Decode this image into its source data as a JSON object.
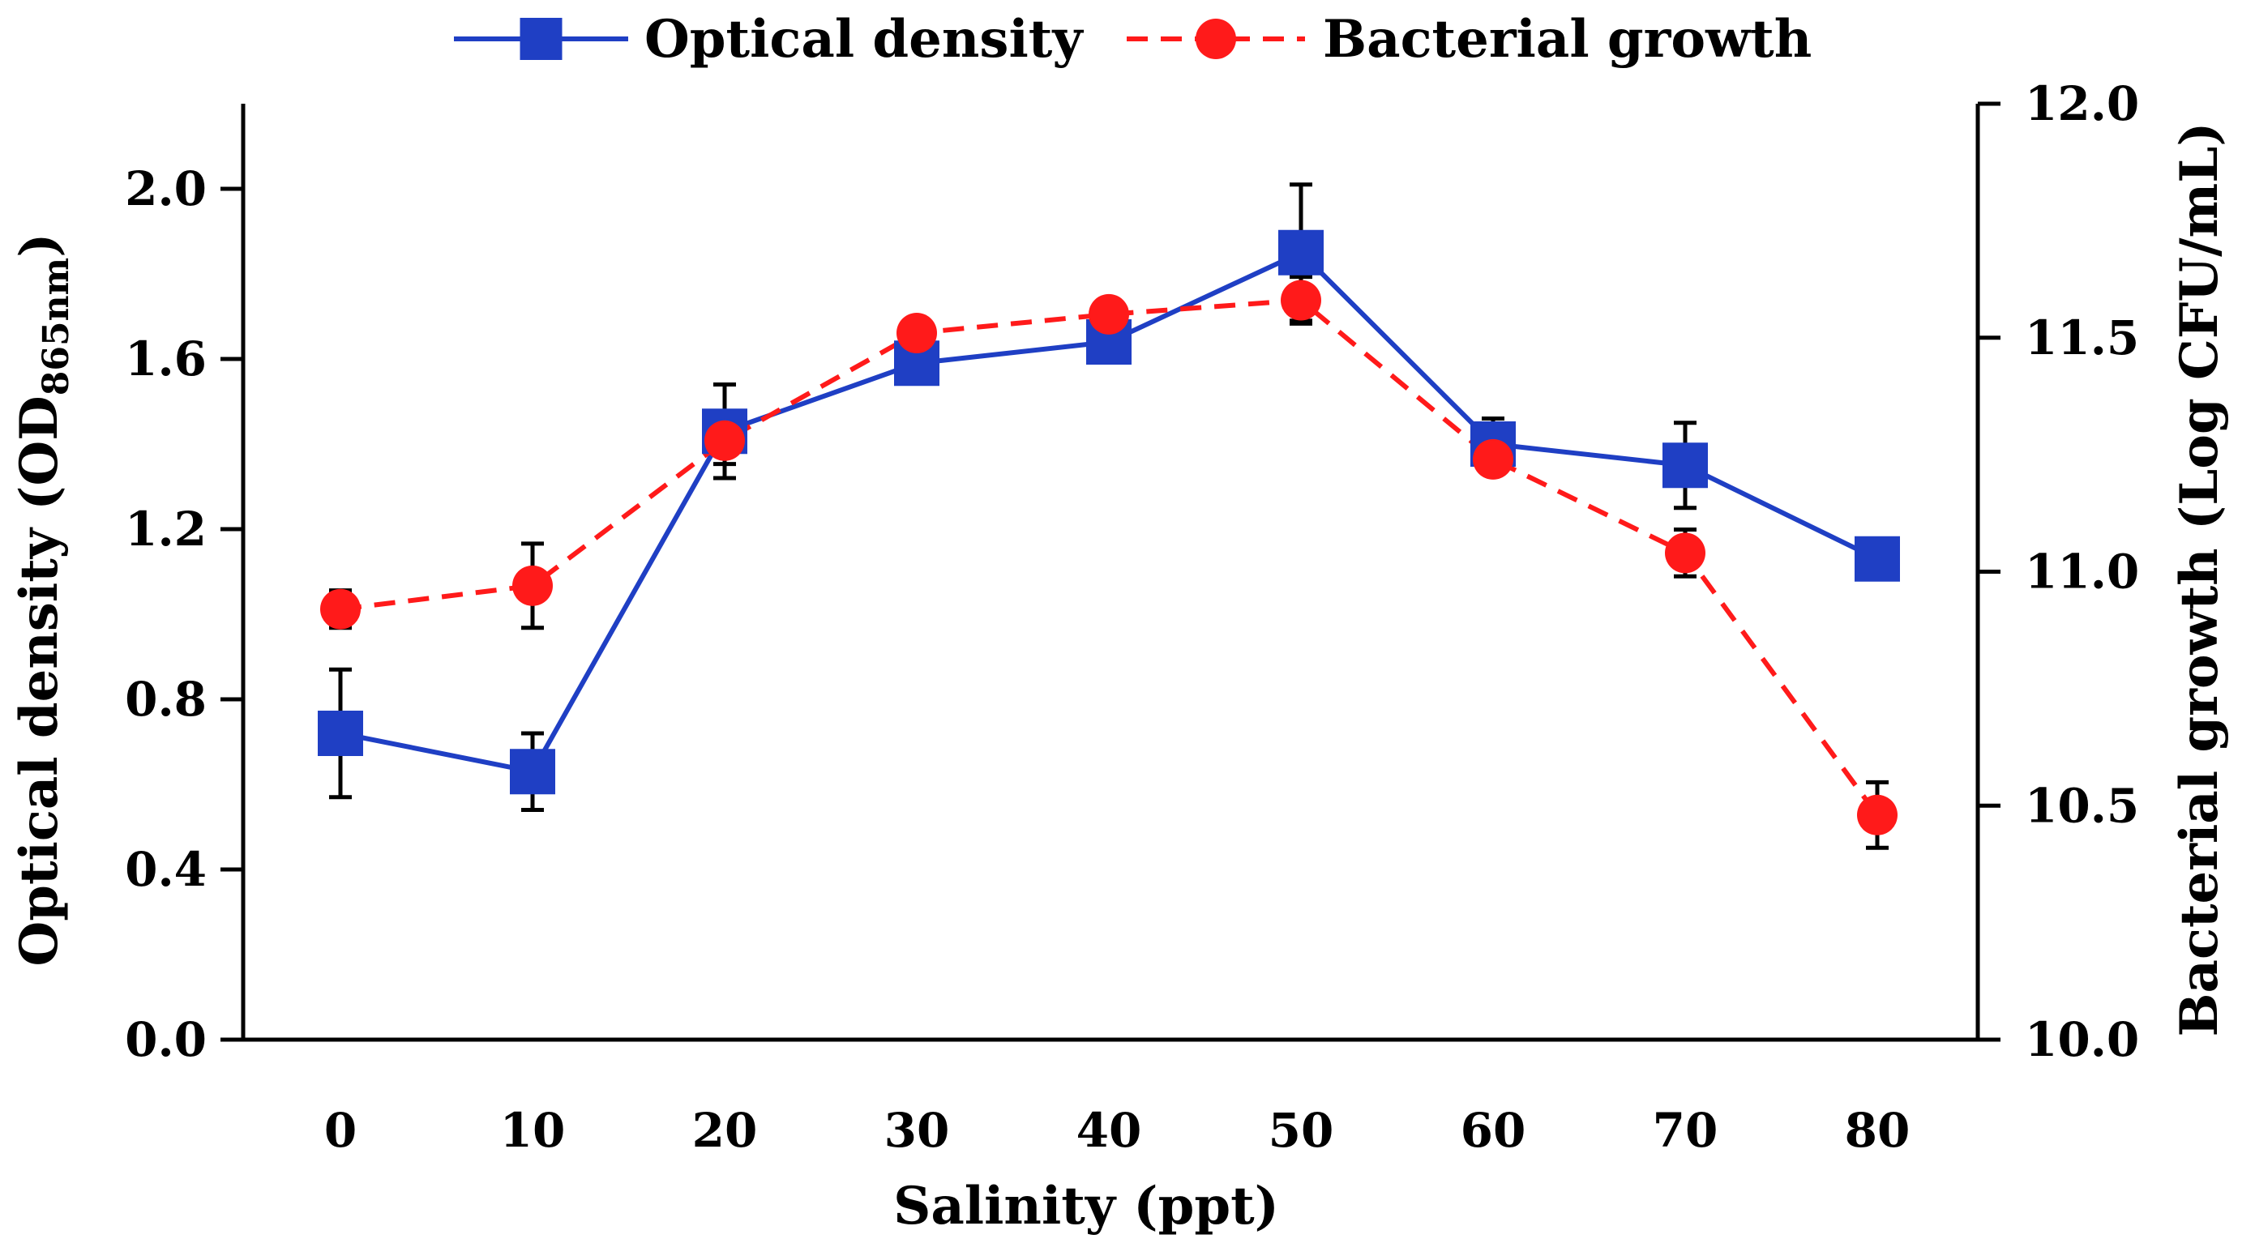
{
  "chart_data": {
    "type": "line",
    "title": "",
    "xlabel": "Salinity (ppt)",
    "ylabel_left": {
      "prefix": "Optical density (OD",
      "subscript": "865nm",
      "suffix": ")"
    },
    "ylabel_right": "Bacterial growth (Log CFU/mL)",
    "x": [
      0,
      10,
      20,
      30,
      40,
      50,
      60,
      70,
      80
    ],
    "x_tick_labels": [
      "0",
      "10",
      "20",
      "30",
      "40",
      "50",
      "60",
      "70",
      "80"
    ],
    "ylim_left": [
      0,
      2.2
    ],
    "y_left_ticks": [
      0.0,
      0.4,
      0.8,
      1.2,
      1.6,
      2.0
    ],
    "y_left_tick_labels": [
      "0.0",
      "0.4",
      "0.8",
      "1.2",
      "1.6",
      "2.0"
    ],
    "ylim_right": [
      10.0,
      12.0
    ],
    "y_right_ticks": [
      10.0,
      10.5,
      11.0,
      11.5,
      12.0
    ],
    "y_right_tick_labels": [
      "10.0",
      "10.5",
      "11.0",
      "11.5",
      "12.0"
    ],
    "legend_position": "top-center",
    "grid": false,
    "series": [
      {
        "name": "Optical density",
        "axis": "left",
        "color": "#1f3fc4",
        "marker": "square",
        "line_style": "solid",
        "values": [
          0.72,
          0.63,
          1.43,
          1.59,
          1.64,
          1.85,
          1.4,
          1.35,
          1.13
        ],
        "errors": [
          0.15,
          0.09,
          0.11,
          0.0,
          0.0,
          0.16,
          0.06,
          0.1,
          0.0
        ]
      },
      {
        "name": "Bacterial growth",
        "axis": "right",
        "color": "#ff1a1a",
        "marker": "circle",
        "line_style": "dashed",
        "values": [
          10.92,
          10.97,
          11.28,
          11.51,
          11.55,
          11.58,
          11.24,
          11.04,
          10.48
        ],
        "errors": [
          0.04,
          0.09,
          0.05,
          0.0,
          0.0,
          0.05,
          0.0,
          0.05,
          0.07
        ]
      }
    ]
  }
}
